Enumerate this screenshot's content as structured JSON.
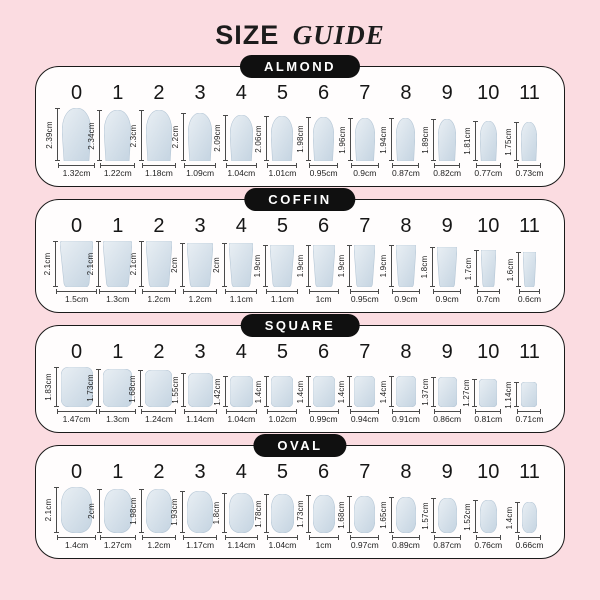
{
  "title": {
    "primary": "SIZE",
    "secondary": "GUIDE"
  },
  "unit": "cm",
  "colors": {
    "background": "#fbdce1",
    "card_background": "#fffdfd",
    "card_border": "#1a1a1a",
    "pill_background": "#101010",
    "pill_text": "#ffffff",
    "title_text": "#1c1c1c",
    "label_text": "#1f1f1f",
    "measure_line": "#4a4a4a",
    "nail_light": "#e9eff4",
    "nail_dark": "#c6d5e2",
    "nail_edge": "#b6c7d6"
  },
  "sections": [
    {
      "label": "ALMOND",
      "shape": "almond",
      "sizes": [
        {
          "size": "0",
          "height": "2.39cm",
          "width": "1.32cm"
        },
        {
          "size": "1",
          "height": "2.34cm",
          "width": "1.22cm"
        },
        {
          "size": "2",
          "height": "2.3cm",
          "width": "1.18cm"
        },
        {
          "size": "3",
          "height": "2.2cm",
          "width": "1.09cm"
        },
        {
          "size": "4",
          "height": "2.09cm",
          "width": "1.04cm"
        },
        {
          "size": "5",
          "height": "2.06cm",
          "width": "1.01cm"
        },
        {
          "size": "6",
          "height": "1.98cm",
          "width": "0.95cm"
        },
        {
          "size": "7",
          "height": "1.96cm",
          "width": "0.9cm"
        },
        {
          "size": "8",
          "height": "1.94cm",
          "width": "0.87cm"
        },
        {
          "size": "9",
          "height": "1.89cm",
          "width": "0.82cm"
        },
        {
          "size": "10",
          "height": "1.81cm",
          "width": "0.77cm"
        },
        {
          "size": "11",
          "height": "1.75cm",
          "width": "0.73cm"
        }
      ]
    },
    {
      "label": "COFFIN",
      "shape": "coffin",
      "sizes": [
        {
          "size": "0",
          "height": "2.1cm",
          "width": "1.5cm"
        },
        {
          "size": "1",
          "height": "2.1cm",
          "width": "1.3cm"
        },
        {
          "size": "2",
          "height": "2.1cm",
          "width": "1.2cm"
        },
        {
          "size": "3",
          "height": "2cm",
          "width": "1.2cm"
        },
        {
          "size": "4",
          "height": "2cm",
          "width": "1.1cm"
        },
        {
          "size": "5",
          "height": "1.9cm",
          "width": "1.1cm"
        },
        {
          "size": "6",
          "height": "1.9cm",
          "width": "1cm"
        },
        {
          "size": "7",
          "height": "1.9cm",
          "width": "0.95cm"
        },
        {
          "size": "8",
          "height": "1.9cm",
          "width": "0.9cm"
        },
        {
          "size": "9",
          "height": "1.8cm",
          "width": "0.9cm"
        },
        {
          "size": "10",
          "height": "1.7cm",
          "width": "0.7cm"
        },
        {
          "size": "11",
          "height": "1.6cm",
          "width": "0.6cm"
        }
      ]
    },
    {
      "label": "SQUARE",
      "shape": "square",
      "sizes": [
        {
          "size": "0",
          "height": "1.83cm",
          "width": "1.47cm"
        },
        {
          "size": "1",
          "height": "1.73cm",
          "width": "1.3cm"
        },
        {
          "size": "2",
          "height": "1.68cm",
          "width": "1.24cm"
        },
        {
          "size": "3",
          "height": "1.55cm",
          "width": "1.14cm"
        },
        {
          "size": "4",
          "height": "1.42cm",
          "width": "1.04cm"
        },
        {
          "size": "5",
          "height": "1.4cm",
          "width": "1.02cm"
        },
        {
          "size": "6",
          "height": "1.4cm",
          "width": "0.99cm"
        },
        {
          "size": "7",
          "height": "1.4cm",
          "width": "0.94cm"
        },
        {
          "size": "8",
          "height": "1.4cm",
          "width": "0.91cm"
        },
        {
          "size": "9",
          "height": "1.37cm",
          "width": "0.86cm"
        },
        {
          "size": "10",
          "height": "1.27cm",
          "width": "0.81cm"
        },
        {
          "size": "11",
          "height": "1.14cm",
          "width": "0.71cm"
        }
      ]
    },
    {
      "label": "OVAL",
      "shape": "oval",
      "sizes": [
        {
          "size": "0",
          "height": "2.1cm",
          "width": "1.4cm"
        },
        {
          "size": "1",
          "height": "2cm",
          "width": "1.27cm"
        },
        {
          "size": "2",
          "height": "1.98cm",
          "width": "1.2cm"
        },
        {
          "size": "3",
          "height": "1.93cm",
          "width": "1.17cm"
        },
        {
          "size": "4",
          "height": "1.8cm",
          "width": "1.14cm"
        },
        {
          "size": "5",
          "height": "1.78cm",
          "width": "1.04cm"
        },
        {
          "size": "6",
          "height": "1.73cm",
          "width": "1cm"
        },
        {
          "size": "7",
          "height": "1.68cm",
          "width": "0.97cm"
        },
        {
          "size": "8",
          "height": "1.65cm",
          "width": "0.89cm"
        },
        {
          "size": "9",
          "height": "1.57cm",
          "width": "0.87cm"
        },
        {
          "size": "10",
          "height": "1.52cm",
          "width": "0.76cm"
        },
        {
          "size": "11",
          "height": "1.4cm",
          "width": "0.66cm"
        }
      ]
    }
  ]
}
